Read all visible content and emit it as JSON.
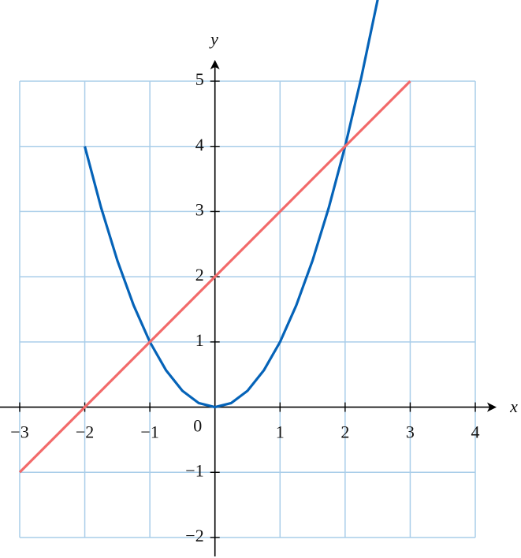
{
  "chart_data": {
    "type": "line",
    "x_label": "x",
    "y_label": "y",
    "xlim": [
      -3,
      4
    ],
    "ylim": [
      -2,
      5
    ],
    "xticks": [
      {
        "value": -3,
        "label": "−3"
      },
      {
        "value": -2,
        "label": "−2"
      },
      {
        "value": -1,
        "label": "−1"
      },
      0,
      1,
      2,
      3,
      4
    ],
    "yticks": [
      {
        "value": -2,
        "label": "−2"
      },
      {
        "value": -1,
        "label": "−1"
      },
      1,
      2,
      3,
      4,
      5
    ],
    "grid": true,
    "grid_color": "#a9cde9",
    "series": [
      {
        "color": "#0563b8",
        "x": [
          -2,
          -1.75,
          -1.5,
          -1.25,
          -1,
          -0.75,
          -0.5,
          -0.25,
          0,
          0.25,
          0.5,
          0.75,
          1,
          1.25,
          1.5,
          1.75,
          2,
          2.25,
          2.5
        ],
        "values": [
          4,
          3.0625,
          2.25,
          1.5625,
          1,
          0.5625,
          0.25,
          0.0625,
          0,
          0.0625,
          0.25,
          0.5625,
          1,
          1.5625,
          2.25,
          3.0625,
          4,
          5.0625,
          6.25
        ]
      },
      {
        "color": "#f26a6a",
        "x": [
          -3,
          3
        ],
        "values": [
          -1,
          5
        ]
      }
    ]
  }
}
